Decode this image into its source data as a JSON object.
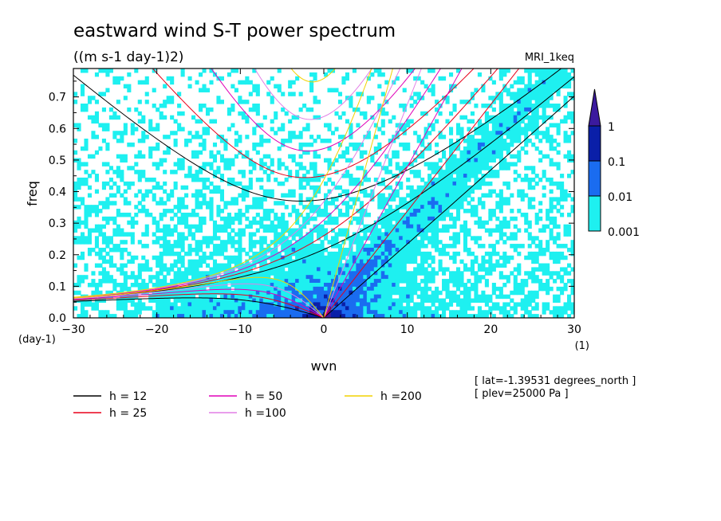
{
  "chart_data": {
    "type": "heatmap",
    "title": "eastward wind S-T power spectrum",
    "subtitle": "((m s-1 day-1)2)",
    "model_label": "MRI_1keq",
    "xlabel": "wvn",
    "x_unit": "(1)",
    "ylabel": "freq",
    "y_unit": "(day-1)",
    "xlim": [
      -30,
      30
    ],
    "ylim": [
      0,
      0.79
    ],
    "x_ticks": [
      -30,
      -20,
      -10,
      0,
      10,
      20,
      30
    ],
    "x_tick_labels": [
      "−30",
      "−20",
      "−10",
      "0",
      "10",
      "20",
      "30"
    ],
    "y_ticks": [
      0,
      0.1,
      0.2,
      0.3,
      0.4,
      0.5,
      0.6,
      0.7
    ],
    "y_tick_labels": [
      "0.0",
      "0.1",
      "0.2",
      "0.3",
      "0.4",
      "0.5",
      "0.6",
      "0.7"
    ],
    "colorbar": {
      "levels": [
        "1",
        "0.1",
        "0.01",
        "0.001"
      ],
      "colors": [
        "#3b1a9e",
        "#0a1fa8",
        "#1a6cf0",
        "#1ef0f0"
      ]
    },
    "dispersion_curves": [
      {
        "label": "h = 12",
        "h": 12,
        "color": "#000000"
      },
      {
        "label": "h = 25",
        "h": 25,
        "color": "#e8001a"
      },
      {
        "label": "h = 50",
        "h": 50,
        "color": "#e000b8"
      },
      {
        "label": "h =100",
        "h": 100,
        "color": "#e27fe6"
      },
      {
        "label": "h =200",
        "h": 200,
        "color": "#f2d200"
      }
    ],
    "annotations": [
      "[ lat=-1.39531 degrees_north ]",
      "[ plev=25000 Pa ]"
    ]
  }
}
